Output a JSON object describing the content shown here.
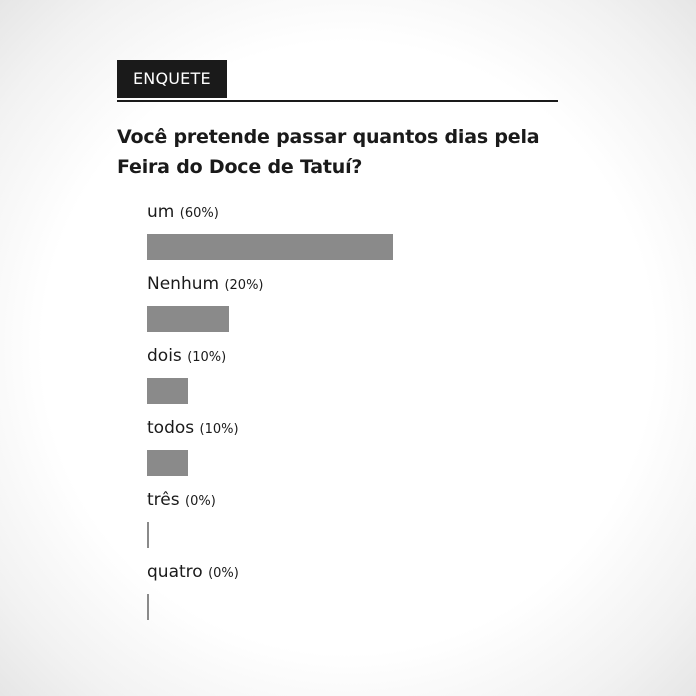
{
  "poll": {
    "tag": "ENQUETE",
    "question": "Você pretende passar quantos dias pela Feira do Doce de Tatuí?"
  },
  "chart_data": {
    "type": "bar",
    "orientation": "horizontal",
    "categories": [
      "um",
      "Nenhum",
      "dois",
      "todos",
      "três",
      "quatro"
    ],
    "values": [
      60,
      20,
      10,
      10,
      0,
      0
    ],
    "value_labels": [
      "(60%)",
      "(20%)",
      "(10%)",
      "(10%)",
      "(0%)",
      "(0%)"
    ],
    "unit": "%",
    "bar_color": "#8a8a8a",
    "grid": false
  }
}
